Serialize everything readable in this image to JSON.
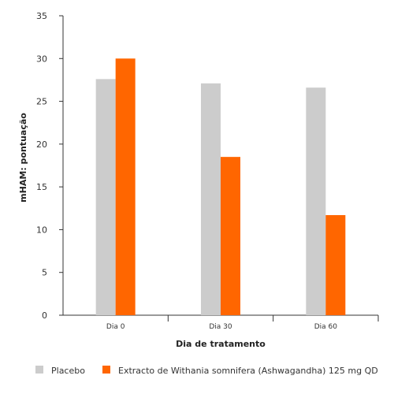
{
  "chart_data": {
    "type": "bar",
    "title": "",
    "xlabel": "Dia de tratamento",
    "ylabel": "mHAM: pontuação",
    "ylim": [
      0,
      35
    ],
    "yticks": [
      0,
      5,
      10,
      15,
      20,
      25,
      30,
      35
    ],
    "categories": [
      "Dia 0",
      "Dia 30",
      "Dia 60"
    ],
    "series": [
      {
        "name": "Placebo",
        "color": "#cccccc",
        "values": [
          27.6,
          27.1,
          26.6
        ]
      },
      {
        "name": "Extracto de Withania somnifera (Ashwagandha) 125 mg QD",
        "color": "#ff6600",
        "values": [
          30.0,
          18.5,
          11.7
        ]
      }
    ],
    "grid": false,
    "legend_position": "bottom"
  }
}
